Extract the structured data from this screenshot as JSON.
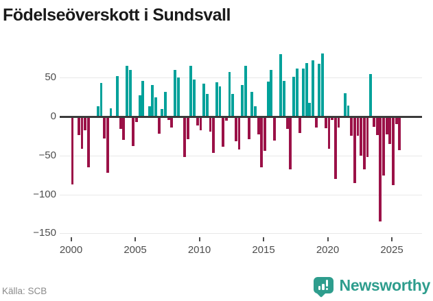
{
  "header": {
    "title": "Födelseöverskott i Sundsvall"
  },
  "footer": {
    "source": "Källa: SCB",
    "brand": "Newsworthy"
  },
  "colors": {
    "positive": "#00A19A",
    "negative": "#9B1147",
    "brand": "#2E9D8D",
    "title_text": "#1A1A1A",
    "axis_text": "#4D4D4D",
    "source_text": "#8A8A8A",
    "gridline": "#E8E8E8",
    "zero_line": "#3B3B3B",
    "background": "#FFFFFF"
  },
  "chart_data": {
    "type": "bar",
    "title": "Födelseöverskott i Sundsvall",
    "frequency": "quarterly",
    "x_start": "2000-Q1",
    "x_end": "2025-Q3",
    "xlabel": "",
    "ylabel": "",
    "grid": true,
    "legend": false,
    "ylim": [
      -150,
      95
    ],
    "x_tick_labels": [
      "2000",
      "2005",
      "2010",
      "2015",
      "2020",
      "2025"
    ],
    "y_tick_values": [
      50,
      0,
      -50,
      -100,
      -150
    ],
    "y_tick_labels": [
      "50",
      "0",
      "−50",
      "−100",
      "−150"
    ],
    "series": [
      {
        "name": "Födelseöverskott",
        "values": [
          -87,
          0,
          -24,
          -41,
          -18,
          -65,
          0,
          0,
          13,
          43,
          -28,
          -72,
          11,
          0,
          52,
          -16,
          -30,
          65,
          60,
          -38,
          -7,
          27,
          46,
          0,
          13,
          41,
          25,
          -22,
          10,
          32,
          -4,
          -14,
          60,
          50,
          0,
          -52,
          -29,
          65,
          48,
          -11,
          -18,
          42,
          29,
          -19,
          -47,
          44,
          39,
          -39,
          -5,
          57,
          29,
          -32,
          -42,
          41,
          65,
          -29,
          32,
          13,
          -23,
          -65,
          -44,
          45,
          60,
          -31,
          0,
          80,
          46,
          -16,
          -68,
          51,
          62,
          -21,
          62,
          69,
          18,
          72,
          -14,
          68,
          81,
          -15,
          -41,
          -4,
          -80,
          -14,
          0,
          30,
          14,
          -25,
          -85,
          -25,
          -50,
          -68,
          -52,
          55,
          -13,
          -24,
          -135,
          -76,
          -23,
          -35,
          -88,
          -10,
          -43
        ]
      }
    ]
  }
}
